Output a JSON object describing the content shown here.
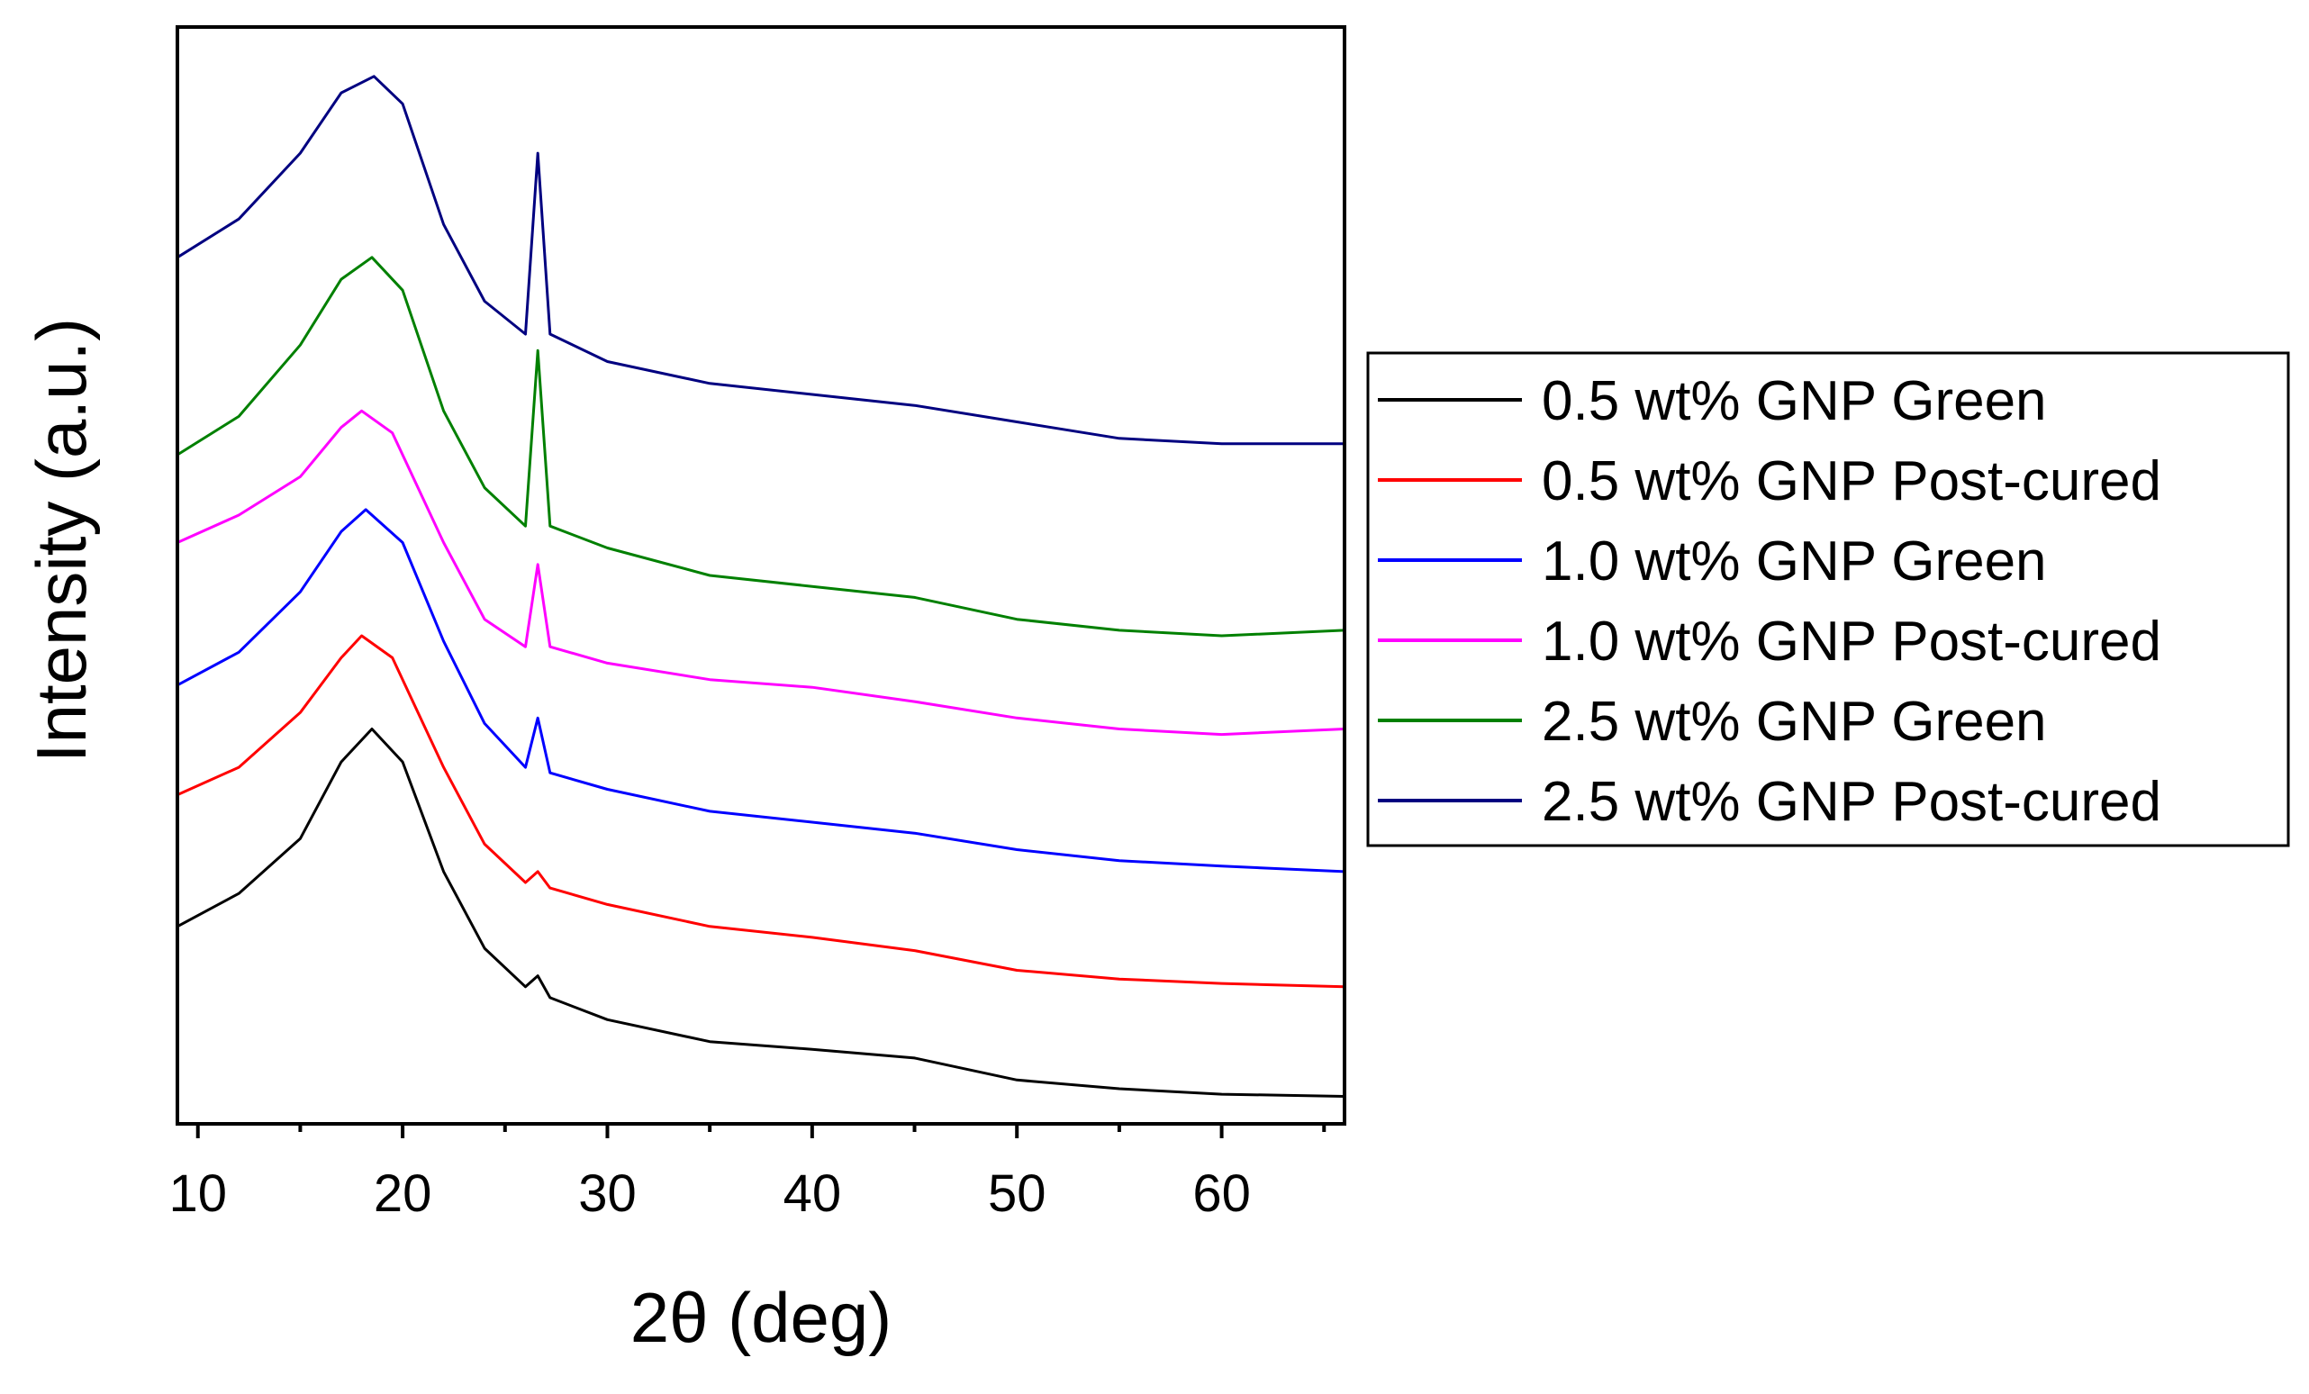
{
  "chart_data": {
    "type": "line",
    "title": "",
    "xlabel": "2θ (deg)",
    "ylabel": "Intensity (a.u.)",
    "xlim": [
      9,
      66
    ],
    "ylim": [
      0,
      10
    ],
    "x_ticks": [
      10,
      20,
      30,
      40,
      50,
      60
    ],
    "y_ticks": [],
    "grid": false,
    "legend_position": "right",
    "series": [
      {
        "name": "0.5 wt% GNP Green",
        "color": "#000000",
        "x": [
          9,
          12,
          15,
          17,
          18.5,
          20,
          22,
          24,
          26,
          26.6,
          27.2,
          30,
          35,
          40,
          45,
          50,
          55,
          60,
          66
        ],
        "y": [
          1.8,
          2.1,
          2.6,
          3.3,
          3.6,
          3.3,
          2.3,
          1.6,
          1.25,
          1.35,
          1.15,
          0.95,
          0.75,
          0.68,
          0.6,
          0.4,
          0.32,
          0.27,
          0.25
        ]
      },
      {
        "name": "0.5 wt% GNP Post-cured",
        "color": "#ff0000",
        "x": [
          9,
          12,
          15,
          17,
          18,
          19.5,
          22,
          24,
          26,
          26.6,
          27.2,
          30,
          35,
          40,
          45,
          50,
          55,
          60,
          66
        ],
        "y": [
          3.0,
          3.25,
          3.75,
          4.25,
          4.45,
          4.25,
          3.25,
          2.55,
          2.2,
          2.3,
          2.15,
          2.0,
          1.8,
          1.7,
          1.58,
          1.4,
          1.32,
          1.28,
          1.25
        ]
      },
      {
        "name": "1.0 wt% GNP Green",
        "color": "#0000ff",
        "x": [
          9,
          12,
          15,
          17,
          18.2,
          20,
          22,
          24,
          26,
          26.6,
          27.2,
          30,
          35,
          40,
          45,
          50,
          55,
          60,
          66
        ],
        "y": [
          4.0,
          4.3,
          4.85,
          5.4,
          5.6,
          5.3,
          4.4,
          3.65,
          3.25,
          3.7,
          3.2,
          3.05,
          2.85,
          2.75,
          2.65,
          2.5,
          2.4,
          2.35,
          2.3
        ]
      },
      {
        "name": "1.0 wt% GNP Post-cured",
        "color": "#ff00ff",
        "x": [
          9,
          12,
          15,
          17,
          18,
          19.5,
          22,
          24,
          26,
          26.6,
          27.2,
          30,
          35,
          40,
          45,
          50,
          55,
          60,
          66
        ],
        "y": [
          5.3,
          5.55,
          5.9,
          6.35,
          6.5,
          6.3,
          5.3,
          4.6,
          4.35,
          5.1,
          4.35,
          4.2,
          4.05,
          3.98,
          3.85,
          3.7,
          3.6,
          3.55,
          3.6
        ]
      },
      {
        "name": "2.5 wt% GNP Green",
        "color": "#008000",
        "x": [
          9,
          12,
          15,
          17,
          18.5,
          20,
          22,
          24,
          26,
          26.6,
          27.2,
          30,
          35,
          40,
          45,
          50,
          55,
          60,
          66
        ],
        "y": [
          6.1,
          6.45,
          7.1,
          7.7,
          7.9,
          7.6,
          6.5,
          5.8,
          5.45,
          7.05,
          5.45,
          5.25,
          5.0,
          4.9,
          4.8,
          4.6,
          4.5,
          4.45,
          4.5
        ]
      },
      {
        "name": "2.5 wt% GNP Post-cured",
        "color": "#000080",
        "x": [
          9,
          12,
          15,
          17,
          18.6,
          20,
          22,
          24,
          26,
          26.6,
          27.2,
          30,
          35,
          40,
          45,
          50,
          55,
          60,
          66
        ],
        "y": [
          7.9,
          8.25,
          8.85,
          9.4,
          9.55,
          9.3,
          8.2,
          7.5,
          7.2,
          8.85,
          7.2,
          6.95,
          6.75,
          6.65,
          6.55,
          6.4,
          6.25,
          6.2,
          6.2
        ]
      }
    ]
  }
}
